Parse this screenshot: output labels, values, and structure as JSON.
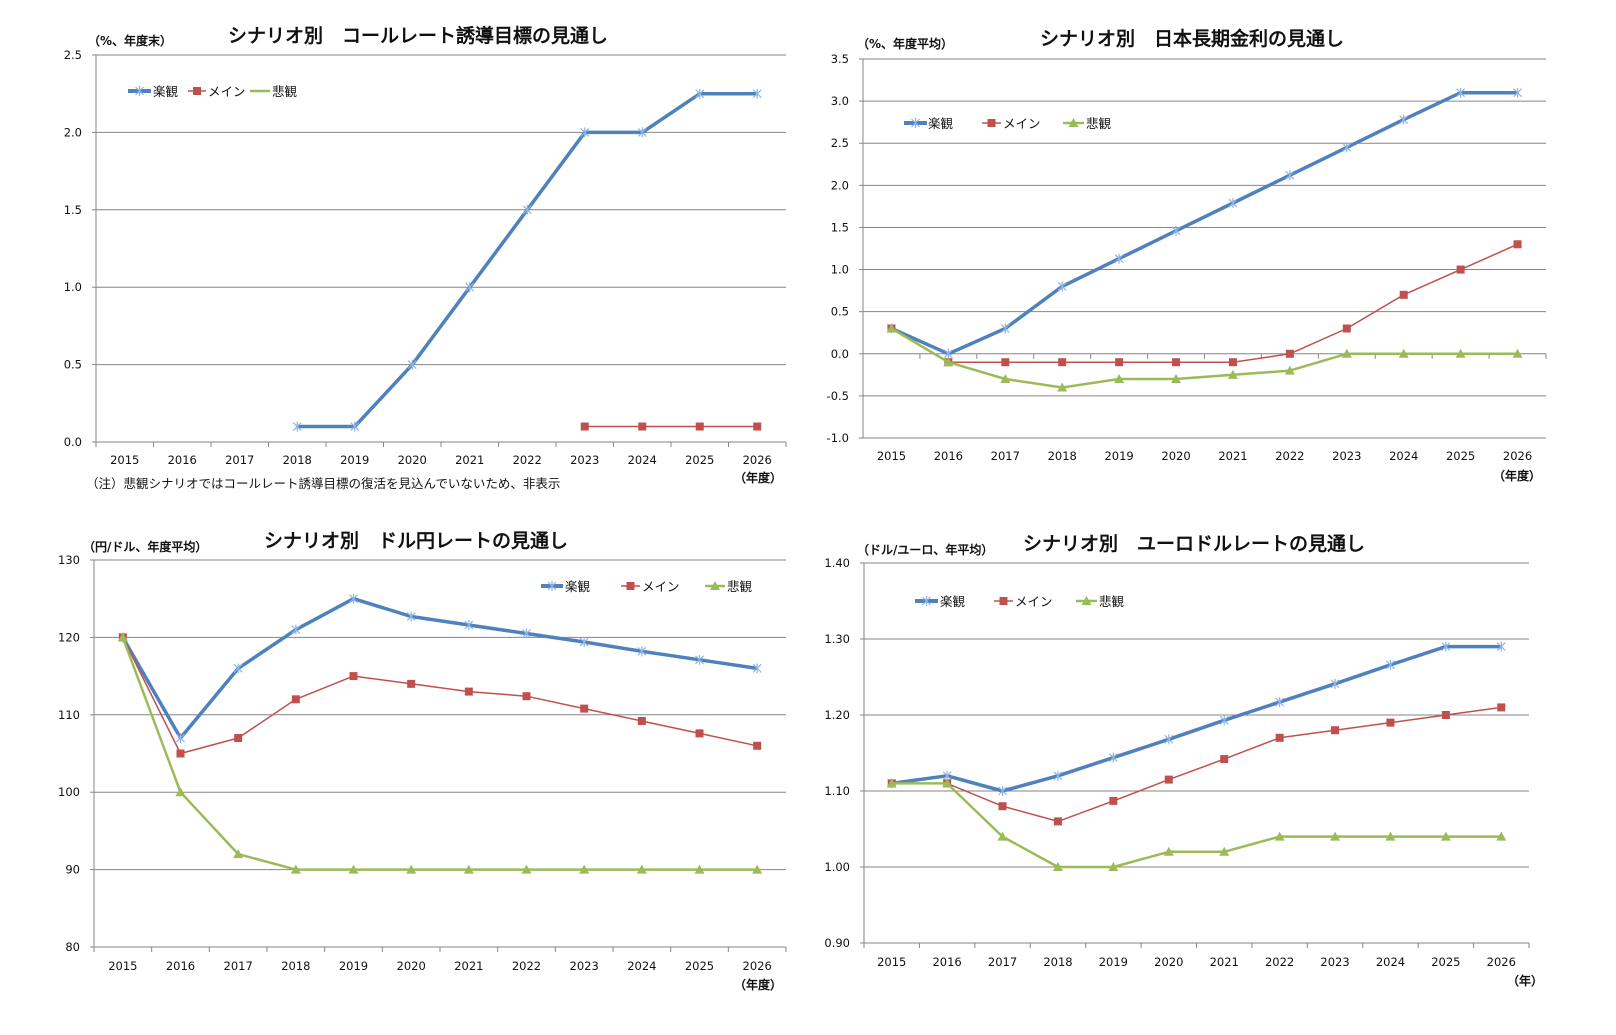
{
  "colors": {
    "optimistic": "#4f81bd",
    "main": "#c0504d",
    "pessimistic": "#9bbb59",
    "grid": "#868686",
    "negative_tick": "#e0001b"
  },
  "chart_data": [
    {
      "type": "line",
      "title": "シナリオ別　コールレート誘導目標の見通し",
      "ylabel": "（%、年度末）",
      "xlabel": "（年度）",
      "note": "（注）悲観シナリオではコールレート誘導目標の復活を見込んでいないため、非表示",
      "ylim": [
        0.0,
        2.5
      ],
      "yticks": [
        "0.0",
        "0.5",
        "1.0",
        "1.5",
        "2.0",
        "2.5"
      ],
      "grid": true,
      "legend": "top-left",
      "categories": [
        "2015",
        "2016",
        "2017",
        "2018",
        "2019",
        "2020",
        "2021",
        "2022",
        "2023",
        "2024",
        "2025",
        "2026"
      ],
      "series": [
        {
          "name": "楽観",
          "marker": "asterisk",
          "values": [
            null,
            null,
            null,
            0.1,
            0.1,
            0.5,
            1.0,
            1.5,
            2.0,
            2.0,
            2.25,
            2.25
          ]
        },
        {
          "name": "メイン",
          "marker": "square",
          "values": [
            null,
            null,
            null,
            null,
            null,
            null,
            null,
            null,
            0.1,
            0.1,
            0.1,
            0.1
          ]
        },
        {
          "name": "悲観",
          "marker": "none",
          "values": [
            null,
            null,
            null,
            null,
            null,
            null,
            null,
            null,
            null,
            null,
            null,
            null
          ]
        }
      ]
    },
    {
      "type": "line",
      "title": "シナリオ別　日本長期金利の見通し",
      "ylabel": "（%、年度平均）",
      "xlabel": "（年度）",
      "ylim": [
        -1.0,
        3.5
      ],
      "yticks": [
        "-1.0",
        "-0.5",
        "0.0",
        "0.5",
        "1.0",
        "1.5",
        "2.0",
        "2.5",
        "3.0",
        "3.5"
      ],
      "grid": true,
      "legend": "top-left",
      "categories": [
        "2015",
        "2016",
        "2017",
        "2018",
        "2019",
        "2020",
        "2021",
        "2022",
        "2023",
        "2024",
        "2025",
        "2026"
      ],
      "series": [
        {
          "name": "楽観",
          "marker": "asterisk",
          "values": [
            0.3,
            0.0,
            0.3,
            0.8,
            1.13,
            1.46,
            1.79,
            2.12,
            2.45,
            2.78,
            3.1,
            3.1
          ]
        },
        {
          "name": "メイン",
          "marker": "square",
          "values": [
            0.3,
            -0.1,
            -0.1,
            -0.1,
            -0.1,
            -0.1,
            -0.1,
            0.0,
            0.3,
            0.7,
            1.0,
            1.3
          ]
        },
        {
          "name": "悲観",
          "marker": "triangle",
          "values": [
            0.3,
            -0.1,
            -0.3,
            -0.4,
            -0.3,
            -0.3,
            -0.25,
            -0.2,
            0.0,
            0.0,
            0.0,
            0.0
          ]
        }
      ]
    },
    {
      "type": "line",
      "title": "シナリオ別　ドル円レートの見通し",
      "ylabel": "（円/ドル、年度平均）",
      "xlabel": "（年度）",
      "ylim": [
        80,
        130
      ],
      "yticks": [
        "80",
        "90",
        "100",
        "110",
        "120",
        "130"
      ],
      "grid": true,
      "legend": "top-right",
      "categories": [
        "2015",
        "2016",
        "2017",
        "2018",
        "2019",
        "2020",
        "2021",
        "2022",
        "2023",
        "2024",
        "2025",
        "2026"
      ],
      "series": [
        {
          "name": "楽観",
          "marker": "asterisk",
          "values": [
            120,
            107,
            116,
            121,
            125,
            122.7,
            121.6,
            120.5,
            119.4,
            118.2,
            117.1,
            116
          ]
        },
        {
          "name": "メイン",
          "marker": "square",
          "values": [
            120,
            105,
            107,
            112,
            115,
            114,
            113,
            112.4,
            110.8,
            109.2,
            107.6,
            106
          ]
        },
        {
          "name": "悲観",
          "marker": "triangle",
          "values": [
            120,
            100,
            92,
            90,
            90,
            90,
            90,
            90,
            90,
            90,
            90,
            90
          ]
        }
      ]
    },
    {
      "type": "line",
      "title": "シナリオ別　ユーロドルレートの見通し",
      "ylabel": "（ドル/ユーロ、年平均）",
      "xlabel": "（年）",
      "ylim": [
        0.9,
        1.4
      ],
      "yticks": [
        "0.90",
        "1.00",
        "1.10",
        "1.20",
        "1.30",
        "1.40"
      ],
      "grid": true,
      "legend": "top-left",
      "categories": [
        "2015",
        "2016",
        "2017",
        "2018",
        "2019",
        "2020",
        "2021",
        "2022",
        "2023",
        "2024",
        "2025",
        "2026"
      ],
      "series": [
        {
          "name": "楽観",
          "marker": "asterisk",
          "values": [
            1.11,
            1.12,
            1.1,
            1.12,
            1.144,
            1.168,
            1.193,
            1.217,
            1.241,
            1.266,
            1.29,
            1.29
          ]
        },
        {
          "name": "メイン",
          "marker": "square",
          "values": [
            1.11,
            1.11,
            1.08,
            1.06,
            1.087,
            1.115,
            1.142,
            1.17,
            1.18,
            1.19,
            1.2,
            1.21
          ]
        },
        {
          "name": "悲観",
          "marker": "triangle",
          "values": [
            1.11,
            1.11,
            1.04,
            1.0,
            1.0,
            1.02,
            1.02,
            1.04,
            1.04,
            1.04,
            1.04,
            1.04
          ]
        }
      ]
    }
  ]
}
